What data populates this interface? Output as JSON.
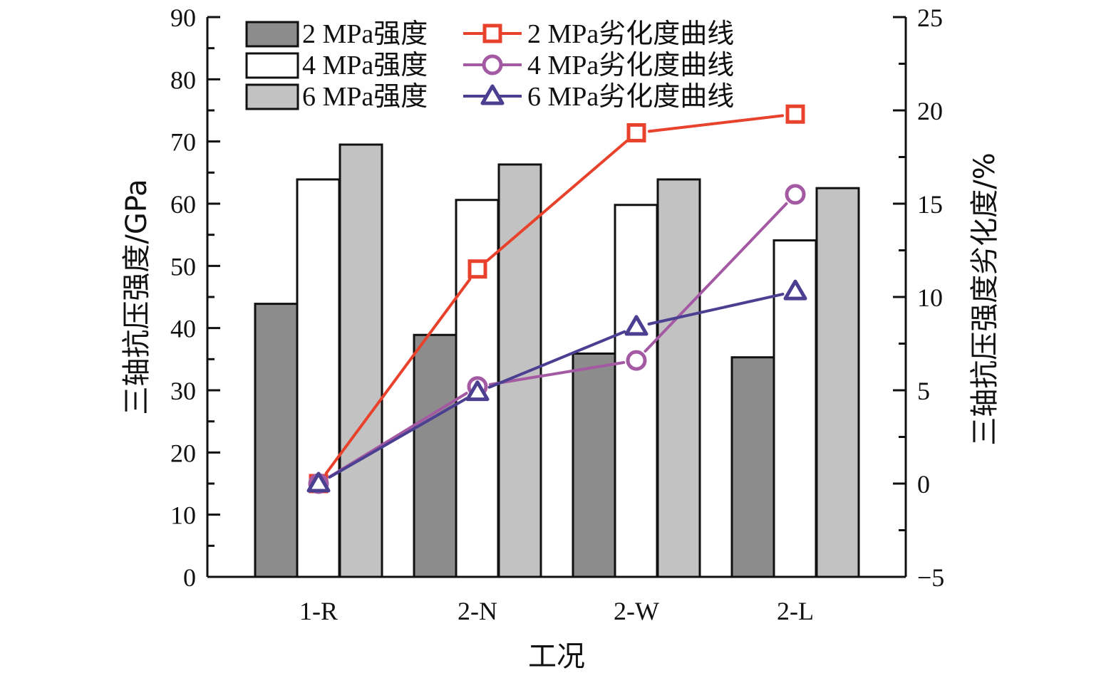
{
  "chart_data": {
    "type": "bar",
    "title": "",
    "xlabel": "工况",
    "ylabel": "三轴抗压强度/GPa",
    "y2label": "三轴抗压强度劣化度/%",
    "categories": [
      "1-R",
      "2-N",
      "2-W",
      "2-L"
    ],
    "ylim": [
      0,
      90
    ],
    "yticks": [
      0,
      10,
      20,
      30,
      40,
      50,
      60,
      70,
      80,
      90
    ],
    "y2lim": [
      -5,
      25
    ],
    "y2ticks": [
      -5,
      0,
      5,
      10,
      15,
      20,
      25
    ],
    "grid": false,
    "legend_position": "top",
    "bar_series": [
      {
        "name": "2 MPa强度",
        "values": [
          43.9,
          38.9,
          35.9,
          35.3
        ],
        "color": "#8c8c8c"
      },
      {
        "name": "4 MPa强度",
        "values": [
          63.9,
          60.6,
          59.8,
          54.1
        ],
        "color": "#ffffff"
      },
      {
        "name": "6 MPa强度",
        "values": [
          69.5,
          66.3,
          63.9,
          62.5
        ],
        "color": "#c2c2c2"
      }
    ],
    "line_series": [
      {
        "name": "2 MPa劣化度曲线",
        "axis": "right",
        "marker": "square",
        "values": [
          0,
          11.5,
          18.8,
          19.8
        ],
        "color": "#e8412c"
      },
      {
        "name": "4 MPa劣化度曲线",
        "axis": "right",
        "marker": "circle",
        "values": [
          0,
          5.2,
          6.6,
          15.5
        ],
        "color": "#a459a3"
      },
      {
        "name": "6 MPa劣化度曲线",
        "axis": "right",
        "marker": "triangle",
        "values": [
          0,
          4.9,
          8.4,
          10.3
        ],
        "color": "#4b3f92"
      }
    ]
  }
}
